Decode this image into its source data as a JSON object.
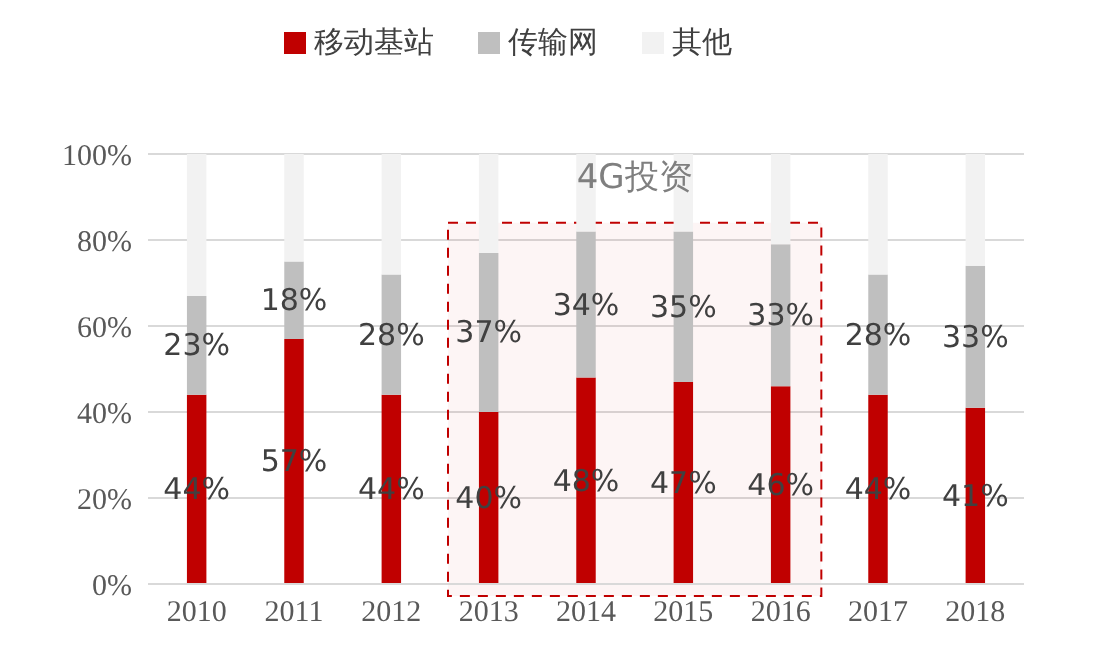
{
  "chart_data": {
    "type": "bar",
    "stacked": true,
    "categories": [
      "2010",
      "2011",
      "2012",
      "2013",
      "2014",
      "2015",
      "2016",
      "2017",
      "2018"
    ],
    "series": [
      {
        "name": "移动基站",
        "color": "#c00000",
        "values": [
          44,
          57,
          44,
          40,
          48,
          47,
          46,
          44,
          41
        ],
        "value_labels": [
          "44%",
          "57%",
          "44%",
          "40%",
          "48%",
          "47%",
          "46%",
          "44%",
          "41%"
        ]
      },
      {
        "name": "传输网",
        "color": "#bfbfbf",
        "values": [
          23,
          18,
          28,
          37,
          34,
          35,
          33,
          28,
          33
        ],
        "value_labels": [
          "23%",
          "18%",
          "28%",
          "37%",
          "34%",
          "35%",
          "33%",
          "28%",
          "33%"
        ]
      },
      {
        "name": "其他",
        "color": "#f2f2f2",
        "values": [
          33,
          25,
          28,
          23,
          18,
          18,
          21,
          28,
          26
        ]
      }
    ],
    "ylim": [
      0,
      100
    ],
    "yticks": [
      {
        "value": 0,
        "label": "0%"
      },
      {
        "value": 20,
        "label": "20%"
      },
      {
        "value": 40,
        "label": "40%"
      },
      {
        "value": 60,
        "label": "60%"
      },
      {
        "value": 80,
        "label": "80%"
      },
      {
        "value": 100,
        "label": "100%"
      }
    ],
    "grid": "y",
    "legend": "top",
    "bands": [
      {
        "axis": "x",
        "from": "2013",
        "to": "2016",
        "label": "4G投资",
        "color": "#c00000"
      }
    ]
  }
}
